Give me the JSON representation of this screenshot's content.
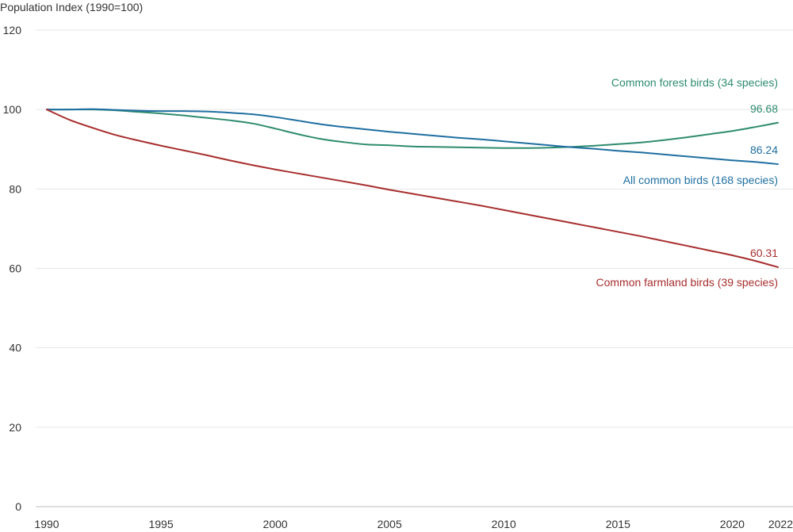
{
  "chart_data": {
    "type": "line",
    "ylabel": "Population Index (1990=100)",
    "ylim": [
      0,
      120
    ],
    "yticks": [
      0,
      20,
      40,
      60,
      80,
      100,
      120
    ],
    "xlim": [
      1990,
      2022
    ],
    "xticks": [
      1990,
      1995,
      2000,
      2005,
      2010,
      2015,
      2020,
      2022
    ],
    "grid": "horizontal",
    "legend": "inline labels at right end of lines",
    "x": [
      1990,
      1991,
      1992,
      1993,
      1994,
      1995,
      1996,
      1997,
      1998,
      1999,
      2000,
      2001,
      2002,
      2003,
      2004,
      2005,
      2006,
      2007,
      2008,
      2009,
      2010,
      2011,
      2012,
      2013,
      2014,
      2015,
      2016,
      2017,
      2018,
      2019,
      2020,
      2021,
      2022
    ],
    "series": [
      {
        "name": "Common forest birds (34 species)",
        "color": "#2e8b6f",
        "end_value_label": "96.68",
        "values": [
          100,
          100,
          100,
          99.8,
          99.4,
          99,
          98.5,
          97.9,
          97.3,
          96.5,
          95.2,
          93.8,
          92.6,
          91.8,
          91.2,
          91,
          90.7,
          90.6,
          90.5,
          90.4,
          90.3,
          90.3,
          90.4,
          90.6,
          90.9,
          91.3,
          91.7,
          92.3,
          93,
          93.8,
          94.6,
          95.6,
          96.68
        ]
      },
      {
        "name": "All common birds (168 species)",
        "color": "#1f6fa1",
        "end_value_label": "86.24",
        "values": [
          100,
          100,
          100.1,
          99.9,
          99.7,
          99.6,
          99.6,
          99.5,
          99.2,
          98.8,
          98.1,
          97.2,
          96.3,
          95.6,
          95,
          94.4,
          93.9,
          93.4,
          92.9,
          92.5,
          92,
          91.5,
          91,
          90.5,
          90.1,
          89.6,
          89.2,
          88.7,
          88.2,
          87.7,
          87.2,
          86.8,
          86.24
        ]
      },
      {
        "name": "Common farmland birds (39 species)",
        "color": "#a82e2e",
        "end_value_label": "60.31",
        "values": [
          100,
          97.4,
          95.4,
          93.6,
          92.2,
          90.9,
          89.7,
          88.5,
          87.2,
          86,
          84.9,
          83.9,
          82.9,
          81.9,
          80.9,
          79.8,
          78.8,
          77.8,
          76.8,
          75.8,
          74.7,
          73.6,
          72.5,
          71.4,
          70.3,
          69.2,
          68.1,
          66.9,
          65.7,
          64.5,
          63.3,
          61.9,
          60.31
        ]
      }
    ]
  }
}
